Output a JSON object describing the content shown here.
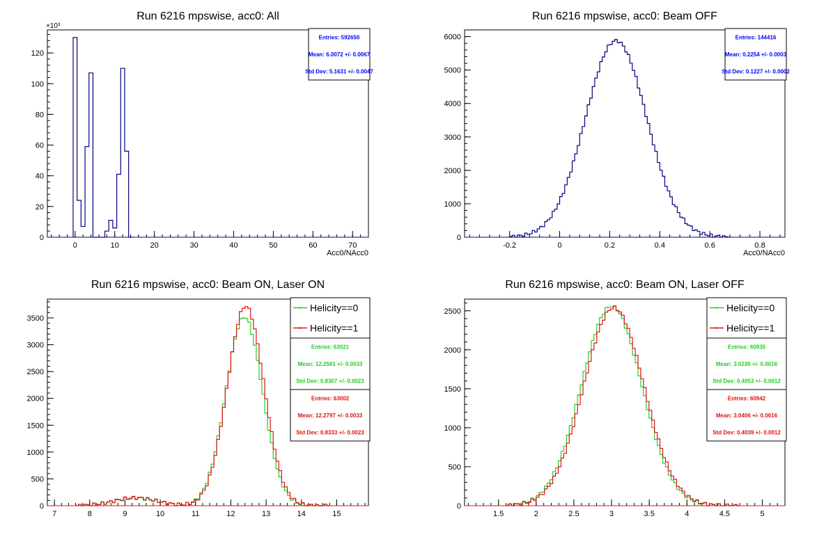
{
  "page": {
    "background": "#ffffff"
  },
  "colors": {
    "navy": "#000080",
    "green": "#22cc22",
    "red": "#e01010",
    "axis": "#000000",
    "stat_blue": "#0000ff"
  },
  "chart_data": [
    {
      "id": "p1",
      "type": "histogram",
      "title": "Run 6216 mpswise, acc0: All",
      "xlabel": "Acc0/NAcc0",
      "ylabel": "",
      "xlim": [
        -7,
        74
      ],
      "ylim": [
        0,
        135
      ],
      "y_multiplier_label": "×10³",
      "x_major_ticks": [
        0,
        10,
        20,
        30,
        40,
        50,
        60,
        70
      ],
      "y_major_ticks": [
        0,
        20,
        40,
        60,
        80,
        100,
        120
      ],
      "bin_width": 1,
      "bin_start": -0.5,
      "series": [
        {
          "color": "#000080",
          "values": [
            130,
            24,
            7,
            59,
            107,
            0,
            0,
            0,
            4,
            11,
            6,
            41,
            110,
            56,
            0
          ]
        }
      ],
      "stats": [
        {
          "color": "#0000ff",
          "entries": "Entries: 592650",
          "mean": "Mean: 6.0072 +/- 0.0067",
          "std": "Std Dev: 5.1631 +/- 0.0047"
        }
      ],
      "legend": []
    },
    {
      "id": "p2",
      "type": "histogram",
      "title": "Run 6216 mpswise, acc0: Beam OFF",
      "xlabel": "Acc0/NAcc0",
      "ylabel": "",
      "xlim": [
        -0.38,
        0.9
      ],
      "ylim": [
        0,
        6200
      ],
      "x_major_ticks": [
        -0.2,
        0,
        0.2,
        0.4,
        0.6,
        0.8
      ],
      "y_major_ticks": [
        0,
        1000,
        2000,
        3000,
        4000,
        5000,
        6000
      ],
      "series": [
        {
          "color": "#000080",
          "gauss": {
            "amp": 5880,
            "mean": 0.2254,
            "sigma": 0.1227,
            "lo": -0.2,
            "hi": 0.68,
            "bins": 88
          }
        }
      ],
      "stats": [
        {
          "color": "#0000ff",
          "entries": "Entries: 144416",
          "mean": "Mean: 0.2254 +/- 0.0003",
          "std": "Std Dev: 0.1227 +/- 0.0002"
        }
      ],
      "legend": []
    },
    {
      "id": "p3",
      "type": "histogram",
      "title": "Run 6216 mpswise, acc0: Beam ON, Laser ON",
      "xlabel": "",
      "ylabel": "",
      "xlim": [
        6.8,
        15.9
      ],
      "ylim": [
        0,
        3850
      ],
      "x_major_ticks": [
        7,
        8,
        9,
        10,
        11,
        12,
        13,
        14,
        15
      ],
      "y_major_ticks": [
        0,
        500,
        1000,
        1500,
        2000,
        2500,
        3000,
        3500
      ],
      "series": [
        {
          "name": "Helicity==0",
          "color": "#22cc22",
          "gauss": {
            "amp": 3520,
            "mean": 12.38,
            "sigma": 0.52,
            "lo": 7.6,
            "hi": 14.8,
            "bins": 90,
            "bump_amp": 140,
            "bump_mean": 9.3,
            "bump_sigma": 0.6
          }
        },
        {
          "name": "Helicity==1",
          "color": "#e01010",
          "gauss": {
            "amp": 3720,
            "mean": 12.42,
            "sigma": 0.52,
            "lo": 7.6,
            "hi": 14.8,
            "bins": 90,
            "bump_amp": 150,
            "bump_mean": 9.3,
            "bump_sigma": 0.6
          }
        }
      ],
      "stats": [
        {
          "color": "#22cc22",
          "entries": "Entries: 63021",
          "mean": "Mean: 12.2561 +/- 0.0033",
          "std": "Std Dev: 0.8307 +/- 0.0023"
        },
        {
          "color": "#e01010",
          "entries": "Entries: 63002",
          "mean": "Mean: 12.2797 +/- 0.0033",
          "std": "Std Dev: 0.8333 +/- 0.0023"
        }
      ],
      "legend": [
        "Helicity==0",
        "Helicity==1"
      ]
    },
    {
      "id": "p4",
      "type": "histogram",
      "title": "Run 6216 mpswise, acc0: Beam ON, Laser OFF",
      "xlabel": "",
      "ylabel": "",
      "xlim": [
        1.05,
        5.3
      ],
      "ylim": [
        0,
        2650
      ],
      "x_major_ticks": [
        1.5,
        2,
        2.5,
        3,
        3.5,
        4,
        4.5,
        5
      ],
      "y_major_ticks": [
        0,
        500,
        1000,
        1500,
        2000,
        2500
      ],
      "series": [
        {
          "name": "Helicity==0",
          "color": "#22cc22",
          "gauss": {
            "amp": 2560,
            "mean": 3.0,
            "sigma": 0.4,
            "lo": 1.6,
            "hi": 4.7,
            "bins": 85
          }
        },
        {
          "name": "Helicity==1",
          "color": "#e01010",
          "gauss": {
            "amp": 2540,
            "mean": 3.03,
            "sigma": 0.4,
            "lo": 1.6,
            "hi": 4.7,
            "bins": 85
          }
        }
      ],
      "stats": [
        {
          "color": "#22cc22",
          "entries": "Entries: 60935",
          "mean": "Mean: 3.0236 +/- 0.0016",
          "std": "Std Dev: 0.4053 +/- 0.0012"
        },
        {
          "color": "#e01010",
          "entries": "Entries: 60942",
          "mean": "Mean: 3.0406 +/- 0.0016",
          "std": "Std Dev: 0.4039 +/- 0.0012"
        }
      ],
      "legend": [
        "Helicity==0",
        "Helicity==1"
      ]
    }
  ]
}
